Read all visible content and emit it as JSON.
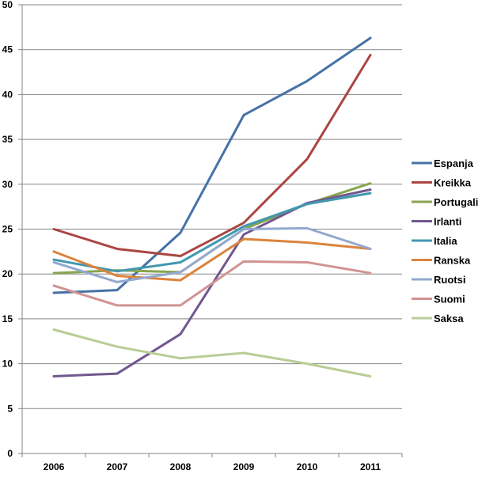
{
  "chart_data": {
    "type": "line",
    "title": "",
    "xlabel": "",
    "ylabel": "",
    "x": [
      "2006",
      "2007",
      "2008",
      "2009",
      "2010",
      "2011"
    ],
    "ylim": [
      0,
      50
    ],
    "yticks": [
      0,
      5,
      10,
      15,
      20,
      25,
      30,
      35,
      40,
      45,
      50
    ],
    "grid": true,
    "legend": "right",
    "series": [
      {
        "name": "Espanja",
        "color": "#4572A7",
        "values": [
          17.9,
          18.2,
          24.6,
          37.7,
          41.5,
          46.3
        ]
      },
      {
        "name": "Kreikka",
        "color": "#AA4643",
        "values": [
          25.0,
          22.8,
          22.0,
          25.7,
          32.8,
          44.4
        ]
      },
      {
        "name": "Portugali",
        "color": "#89A54E",
        "values": [
          20.1,
          20.4,
          20.2,
          25.0,
          27.8,
          30.1
        ]
      },
      {
        "name": "Irlanti",
        "color": "#71588F",
        "values": [
          8.6,
          8.9,
          13.3,
          24.4,
          27.9,
          29.4
        ]
      },
      {
        "name": "Italia",
        "color": "#4198AF",
        "values": [
          21.6,
          20.3,
          21.3,
          25.3,
          27.8,
          29.0
        ]
      },
      {
        "name": "Ranska",
        "color": "#DB843D",
        "values": [
          22.5,
          19.8,
          19.3,
          23.9,
          23.5,
          22.8
        ]
      },
      {
        "name": "Ruotsi",
        "color": "#93A9CF",
        "values": [
          21.3,
          19.1,
          20.2,
          25.0,
          25.1,
          22.8
        ]
      },
      {
        "name": "Suomi",
        "color": "#D19392",
        "values": [
          18.7,
          16.5,
          16.5,
          21.4,
          21.3,
          20.1
        ]
      },
      {
        "name": "Saksa",
        "color": "#B9CD96",
        "values": [
          13.8,
          11.9,
          10.6,
          11.2,
          10.0,
          8.6
        ]
      }
    ]
  }
}
